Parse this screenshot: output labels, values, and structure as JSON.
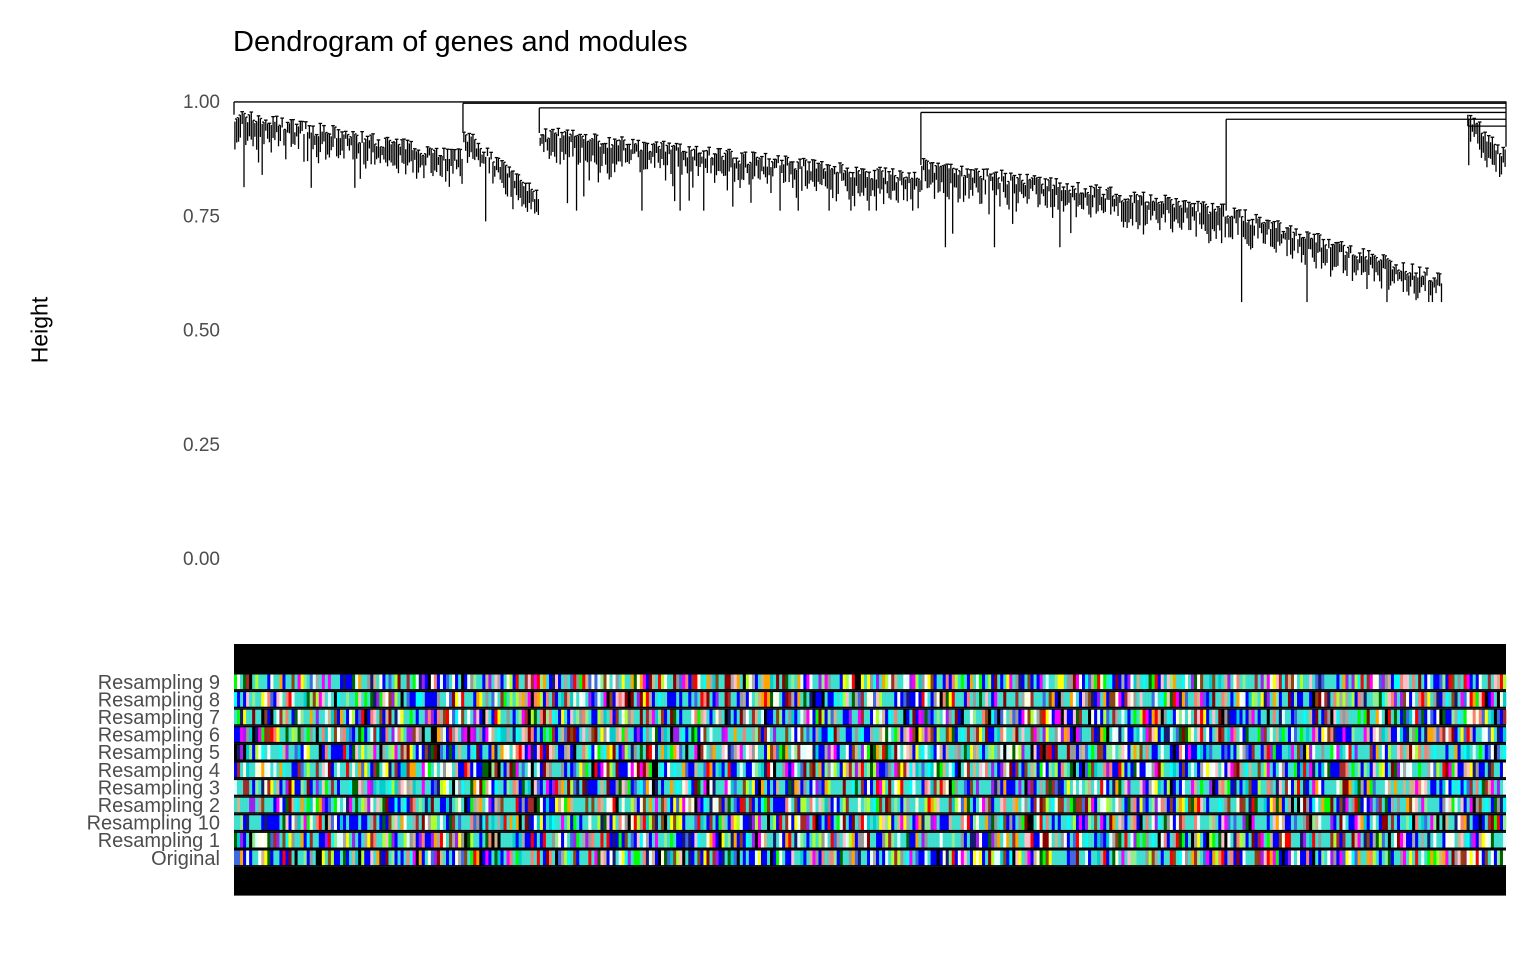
{
  "chart_data": {
    "type": "dendrogram",
    "title": "Dendrogram of genes and modules",
    "ylabel": "Height",
    "xlabel": "",
    "ylim": [
      0,
      1
    ],
    "yticks": [
      "0.00",
      "0.25",
      "0.50",
      "0.75",
      "1.00"
    ],
    "ytick_values": [
      0,
      0.25,
      0.5,
      0.75,
      1.0
    ],
    "grid": false,
    "clusters": [
      {
        "leaf_range": [
          0.0,
          0.18
        ],
        "top_height": 0.97,
        "bottom_height": 0.88,
        "min_leaf": 0.81
      },
      {
        "leaf_range": [
          0.18,
          0.24
        ],
        "top_height": 0.93,
        "bottom_height": 0.79,
        "min_leaf": 0.73
      },
      {
        "leaf_range": [
          0.24,
          0.54
        ],
        "top_height": 0.93,
        "bottom_height": 0.83,
        "min_leaf": 0.76
      },
      {
        "leaf_range": [
          0.54,
          0.78
        ],
        "top_height": 0.86,
        "bottom_height": 0.76,
        "min_leaf": 0.68
      },
      {
        "leaf_range": [
          0.78,
          0.95
        ],
        "top_height": 0.76,
        "bottom_height": 0.61,
        "min_leaf": 0.56
      },
      {
        "leaf_range": [
          0.97,
          1.0
        ],
        "top_height": 0.97,
        "bottom_height": 0.88,
        "min_leaf": 0.81
      }
    ],
    "color_rows": [
      "Resampling 9",
      "Resampling 8",
      "Resampling 7",
      "Resampling 6",
      "Resampling 5",
      "Resampling 4",
      "Resampling 3",
      "Resampling 2",
      "Resampling 10",
      "Resampling 1",
      "Original"
    ],
    "module_colors": [
      "#40E0D0",
      "#0000FF",
      "#A52A2A",
      "#FFFF00",
      "#00FF00",
      "#FF0000",
      "#000000",
      "#FFC0CB",
      "#FF00FF",
      "#A020F0",
      "#ADFF2F",
      "#D2B48C",
      "#FA8072",
      "#00FFFF",
      "#191970",
      "#E0FFFF",
      "#999999",
      "#90EE90",
      "#FFFFE0",
      "#4169E1",
      "#8B0000",
      "#006400",
      "#00CED1",
      "#A9A9A9",
      "#FFA500",
      "#FFFFFF",
      "#8B4513"
    ],
    "branch_color": "#000000",
    "band_color": "#000000"
  }
}
